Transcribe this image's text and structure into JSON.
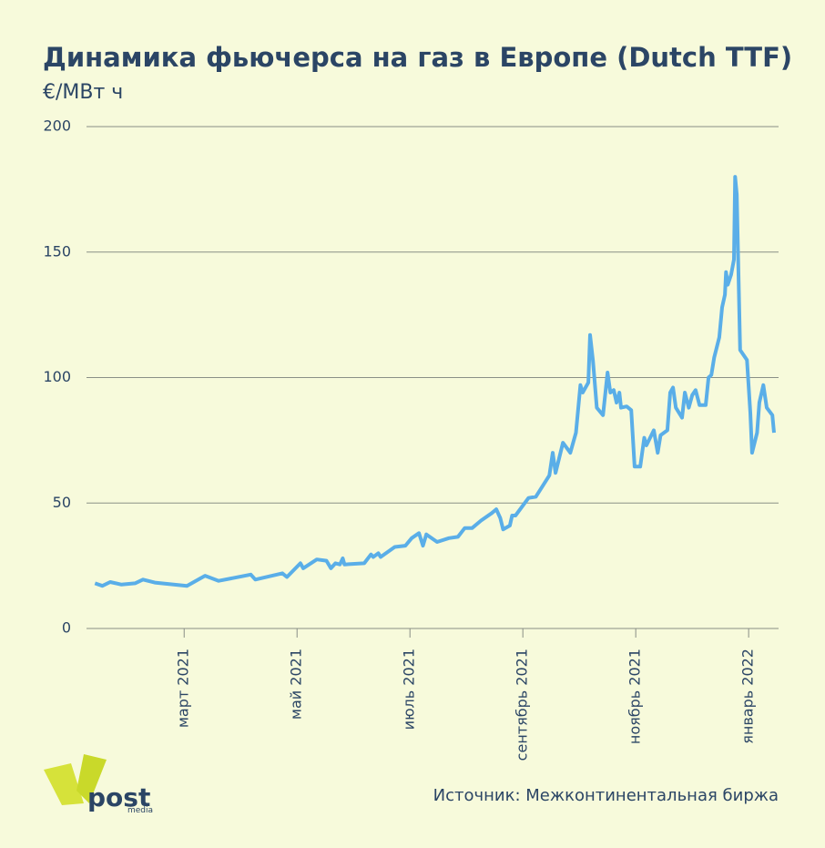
{
  "chart_data": {
    "type": "line",
    "title": "Динамика фьючерса на газ в Европе (Dutch TTF)",
    "subtitle": "€/МВт ч",
    "source": "Источник: Межконтинентальная биржа",
    "logo": {
      "name": "post",
      "sub": "media"
    },
    "xlim": [
      0.27,
      12.53
    ],
    "xticks": [
      {
        "value": 2,
        "label": "март 2021"
      },
      {
        "value": 4,
        "label": "май 2021"
      },
      {
        "value": 6,
        "label": "июль 2021"
      },
      {
        "value": 8,
        "label": "сентябрь 2021"
      },
      {
        "value": 10,
        "label": "ноябрь 2021"
      },
      {
        "value": 12,
        "label": "январь 2022"
      }
    ],
    "ylim": [
      0,
      200
    ],
    "yticks": [
      0,
      50,
      100,
      150,
      200
    ],
    "grid": true,
    "x": [
      0.42,
      0.55,
      0.69,
      0.89,
      1.13,
      1.27,
      1.48,
      2.05,
      2.37,
      2.61,
      3.18,
      3.26,
      3.74,
      3.82,
      4.06,
      4.11,
      4.35,
      4.52,
      4.6,
      4.68,
      4.76,
      4.81,
      4.84,
      5.19,
      5.31,
      5.35,
      5.44,
      5.48,
      5.73,
      5.92,
      6.03,
      6.16,
      6.23,
      6.29,
      6.48,
      6.69,
      6.85,
      6.97,
      7.1,
      7.26,
      7.45,
      7.53,
      7.6,
      7.65,
      7.77,
      7.81,
      7.87,
      8.1,
      8.23,
      8.47,
      8.53,
      8.58,
      8.71,
      8.84,
      8.94,
      9.02,
      9.06,
      9.16,
      9.19,
      9.24,
      9.31,
      9.42,
      9.5,
      9.55,
      9.61,
      9.66,
      9.71,
      9.74,
      9.84,
      9.92,
      9.98,
      10.08,
      10.15,
      10.19,
      10.32,
      10.39,
      10.44,
      10.56,
      10.61,
      10.66,
      10.71,
      10.82,
      10.87,
      10.94,
      11.0,
      11.06,
      11.13,
      11.24,
      11.29,
      11.34,
      11.39,
      11.48,
      11.53,
      11.58,
      11.6,
      11.63,
      11.69,
      11.74,
      11.76,
      11.79,
      11.85,
      11.97,
      12.03,
      12.06,
      12.15,
      12.19,
      12.26,
      12.32,
      12.42,
      12.45
    ],
    "series": [
      {
        "color": "#5aaee8",
        "values": [
          18,
          17,
          18.5,
          17.5,
          18,
          19.5,
          18.3,
          17,
          21,
          19,
          21.5,
          19.5,
          22,
          20.5,
          26,
          24,
          27.5,
          27,
          24,
          26,
          25.5,
          28,
          25.5,
          26,
          29.5,
          28.5,
          30,
          28.5,
          32.5,
          33,
          36,
          38,
          33,
          37.5,
          34.5,
          36,
          36.5,
          40,
          40,
          43,
          46,
          47.5,
          44,
          39.5,
          41,
          45,
          45,
          52,
          52.5,
          61,
          70,
          62,
          74,
          70,
          78,
          97,
          94,
          98,
          117,
          107,
          88,
          85,
          102,
          94,
          95,
          90,
          94,
          88,
          88.5,
          87,
          64.5,
          64.5,
          76,
          73,
          79,
          70,
          77,
          79,
          94,
          96,
          88,
          84,
          94,
          88,
          93,
          95,
          89,
          89,
          100,
          101,
          108,
          116,
          128,
          133,
          142,
          137,
          141,
          147,
          180,
          173,
          111,
          107,
          86,
          70,
          78,
          90,
          97,
          88,
          85,
          78
        ]
      }
    ]
  }
}
